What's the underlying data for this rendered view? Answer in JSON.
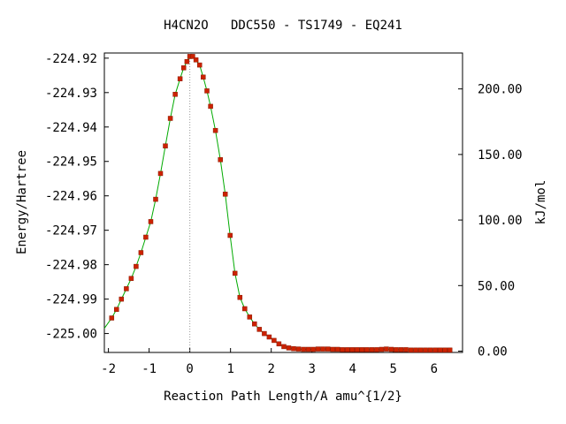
{
  "chart_data": {
    "type": "scatter",
    "title": "H4CN2O   DDC550 - TS1749 - EQ241",
    "xlabel": "Reaction Path Length/A amu^{1/2}",
    "ylabel": "Energy/Hartree",
    "y2label": "kJ/mol",
    "xlim": [
      -2.1,
      6.7
    ],
    "ylim": [
      -225.0055,
      -224.9185
    ],
    "y2lim": [
      -1.0,
      227.4
    ],
    "x_ticks": [
      -2,
      -1,
      0,
      1,
      2,
      3,
      4,
      5,
      6
    ],
    "x_tick_labels": [
      "-2",
      "-1",
      "0",
      "1",
      "2",
      "3",
      "4",
      "5",
      "6"
    ],
    "y_ticks": [
      -224.92,
      -224.93,
      -224.94,
      -224.95,
      -224.96,
      -224.97,
      -224.98,
      -224.99,
      -225.0
    ],
    "y_tick_labels": [
      "-224.92",
      "-224.93",
      "-224.94",
      "-224.95",
      "-224.96",
      "-224.97",
      "-224.98",
      "-224.99",
      "-225.00"
    ],
    "y2_ticks": [
      0,
      50,
      100,
      150,
      200
    ],
    "y2_tick_labels": [
      "0.00",
      "50.00",
      "100.00",
      "150.00",
      "200.00"
    ],
    "ts_marker_x": 0,
    "grid": false,
    "colors": {
      "points": "#cc2200",
      "curve": "#00aa00",
      "marker_line": "#999999",
      "axis": "#000000"
    },
    "x": [
      -1.92,
      -1.8,
      -1.68,
      -1.56,
      -1.44,
      -1.32,
      -1.2,
      -1.08,
      -0.96,
      -0.84,
      -0.72,
      -0.6,
      -0.48,
      -0.36,
      -0.24,
      -0.15,
      -0.07,
      0.0,
      0.07,
      0.15,
      0.24,
      0.33,
      0.42,
      0.51,
      0.63,
      0.75,
      0.87,
      0.99,
      1.11,
      1.23,
      1.35,
      1.47,
      1.59,
      1.71,
      1.83,
      1.95,
      2.07,
      2.19,
      2.31,
      2.43,
      2.55,
      2.67,
      2.79,
      2.91,
      3.03,
      3.15,
      3.27,
      3.39,
      3.51,
      3.63,
      3.75,
      3.87,
      3.99,
      4.11,
      4.23,
      4.35,
      4.47,
      4.59,
      4.71,
      4.83,
      4.95,
      5.07,
      5.19,
      5.31,
      5.43,
      5.55,
      5.67,
      5.79,
      5.91,
      6.03,
      6.15,
      6.27,
      6.39
    ],
    "y": [
      -224.9955,
      -224.993,
      -224.99,
      -224.987,
      -224.984,
      -224.9805,
      -224.9765,
      -224.972,
      -224.9675,
      -224.961,
      -224.9535,
      -224.9455,
      -224.9375,
      -224.9305,
      -224.926,
      -224.9228,
      -224.921,
      -224.9195,
      -224.9195,
      -224.9205,
      -224.922,
      -224.9255,
      -224.9295,
      -224.934,
      -224.941,
      -224.9495,
      -224.9595,
      -224.9715,
      -224.9825,
      -224.9895,
      -224.9928,
      -224.9952,
      -224.9972,
      -224.9988,
      -225.0,
      -225.001,
      -225.002,
      -225.003,
      -225.0038,
      -225.0042,
      -225.0044,
      -225.0045,
      -225.0046,
      -225.0046,
      -225.0046,
      -225.0045,
      -225.0045,
      -225.0045,
      -225.0046,
      -225.0046,
      -225.0047,
      -225.0047,
      -225.0047,
      -225.0047,
      -225.0047,
      -225.0047,
      -225.0047,
      -225.0047,
      -225.0046,
      -225.0045,
      -225.0046,
      -225.0047,
      -225.0047,
      -225.0047,
      -225.0048,
      -225.0048,
      -225.0048,
      -225.0048,
      -225.0048,
      -225.0048,
      -225.0048,
      -225.0048,
      -225.0048
    ]
  }
}
